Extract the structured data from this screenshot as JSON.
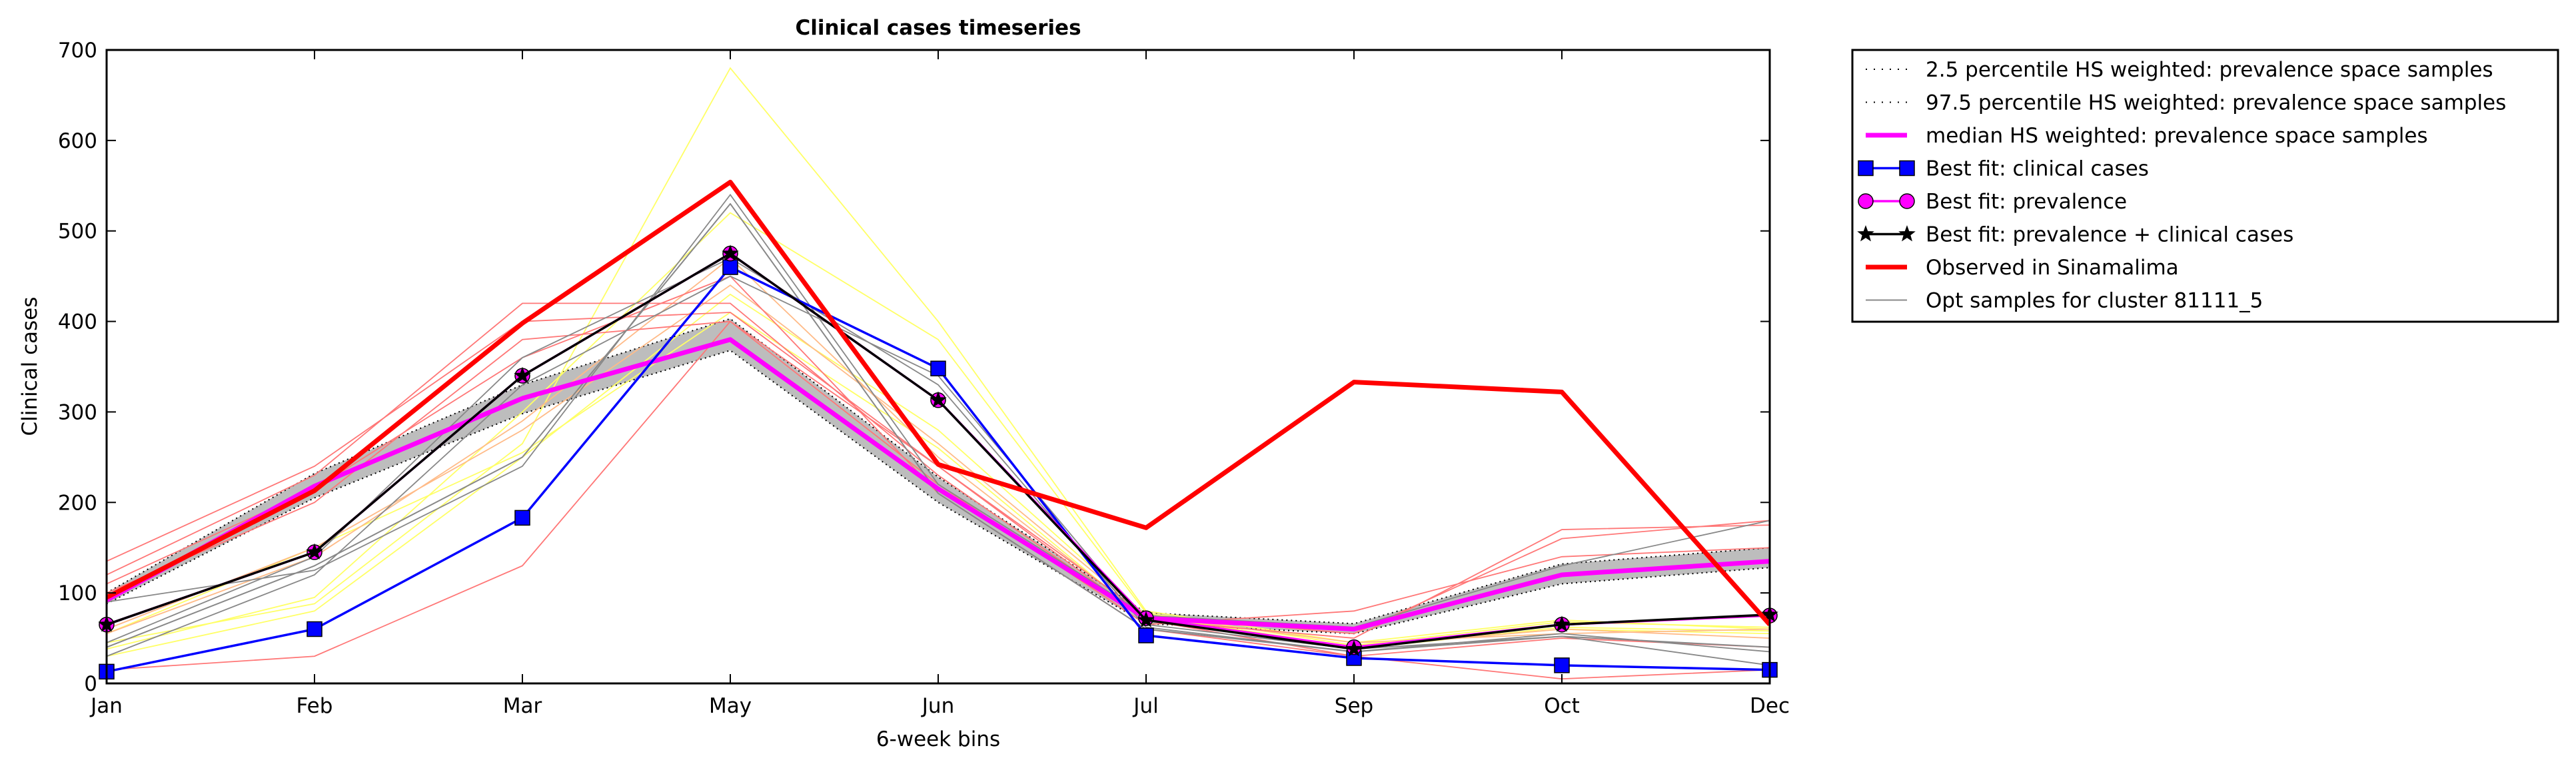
{
  "chart_data": {
    "type": "line",
    "title": "Clinical cases timeseries",
    "xlabel": "6-week bins",
    "ylabel": "Clinical cases",
    "categories": [
      "Jan",
      "Feb",
      "Mar",
      "May",
      "Jun",
      "Jul",
      "Sep",
      "Oct",
      "Dec"
    ],
    "ylim": [
      0,
      700
    ],
    "yticks": [
      0,
      100,
      200,
      300,
      400,
      500,
      600,
      700
    ],
    "grid": false,
    "legend_position": "outside-top-right",
    "band": {
      "lower_name": "2.5 percentile HS weighted: prevalence space samples",
      "upper_name": "97.5 percentile HS weighted: prevalence space samples",
      "lower": [
        88,
        205,
        298,
        368,
        200,
        66,
        55,
        110,
        128
      ],
      "upper": [
        100,
        232,
        330,
        403,
        228,
        78,
        66,
        132,
        150
      ],
      "color": "#bdbdbd"
    },
    "series": [
      {
        "name": "median HS weighted: prevalence space samples",
        "values": [
          92,
          218,
          315,
          380,
          215,
          72,
          60,
          120,
          135
        ],
        "color": "#ff00ff",
        "marker": "none"
      },
      {
        "name": "Best fit: clinical cases",
        "values": [
          13,
          60,
          183,
          460,
          348,
          53,
          28,
          20,
          15
        ],
        "color": "#0000ff",
        "marker": "square"
      },
      {
        "name": "Best fit: prevalence",
        "values": [
          65,
          145,
          340,
          475,
          313,
          72,
          40,
          65,
          75
        ],
        "color": "#ff00ff",
        "marker": "circle"
      },
      {
        "name": "Best fit: prevalence + clinical cases",
        "values": [
          65,
          145,
          340,
          475,
          313,
          70,
          38,
          65,
          76
        ],
        "color": "#000000",
        "marker": "star"
      },
      {
        "name": "Observed in Sinamalima",
        "values": [
          95,
          213,
          398,
          554,
          242,
          172,
          333,
          322,
          65
        ],
        "color": "#ff0000",
        "marker": "none"
      },
      {
        "name": "Opt samples for cluster 81111_5",
        "values": [
          40,
          130,
          250,
          530,
          210,
          60,
          35,
          52,
          40
        ],
        "color": "#888888",
        "marker": "none"
      }
    ],
    "samples": [
      {
        "color": "#ffff66",
        "values": [
          45,
          88,
          265,
          680,
          400,
          80,
          45,
          70,
          60
        ]
      },
      {
        "color": "#ffff66",
        "values": [
          38,
          95,
          300,
          520,
          380,
          78,
          42,
          68,
          62
        ]
      },
      {
        "color": "#ffff66",
        "values": [
          30,
          80,
          250,
          430,
          280,
          75,
          40,
          60,
          55
        ]
      },
      {
        "color": "#ffff66",
        "values": [
          55,
          150,
          255,
          410,
          260,
          70,
          38,
          62,
          58
        ]
      },
      {
        "color": "#ffbb88",
        "values": [
          55,
          140,
          290,
          470,
          250,
          72,
          40,
          60,
          50
        ]
      },
      {
        "color": "#ffbb88",
        "values": [
          60,
          150,
          280,
          440,
          265,
          75,
          45,
          55,
          60
        ]
      },
      {
        "color": "#ff7777",
        "values": [
          120,
          230,
          420,
          420,
          230,
          70,
          50,
          170,
          175
        ]
      },
      {
        "color": "#ff7777",
        "values": [
          135,
          240,
          400,
          410,
          240,
          75,
          55,
          160,
          180
        ]
      },
      {
        "color": "#ff7777",
        "values": [
          15,
          30,
          130,
          400,
          240,
          70,
          30,
          5,
          15
        ]
      },
      {
        "color": "#ff7777",
        "values": [
          100,
          200,
          380,
          400,
          220,
          65,
          80,
          140,
          150
        ]
      },
      {
        "color": "#ff7777",
        "values": [
          110,
          215,
          360,
          450,
          210,
          60,
          30,
          50,
          40
        ]
      },
      {
        "color": "#888888",
        "values": [
          90,
          125,
          240,
          540,
          220,
          75,
          62,
          130,
          180
        ]
      },
      {
        "color": "#888888",
        "values": [
          45,
          140,
          360,
          470,
          330,
          62,
          35,
          55,
          35
        ]
      },
      {
        "color": "#888888",
        "values": [
          30,
          120,
          330,
          450,
          340,
          65,
          38,
          52,
          20
        ]
      }
    ]
  }
}
